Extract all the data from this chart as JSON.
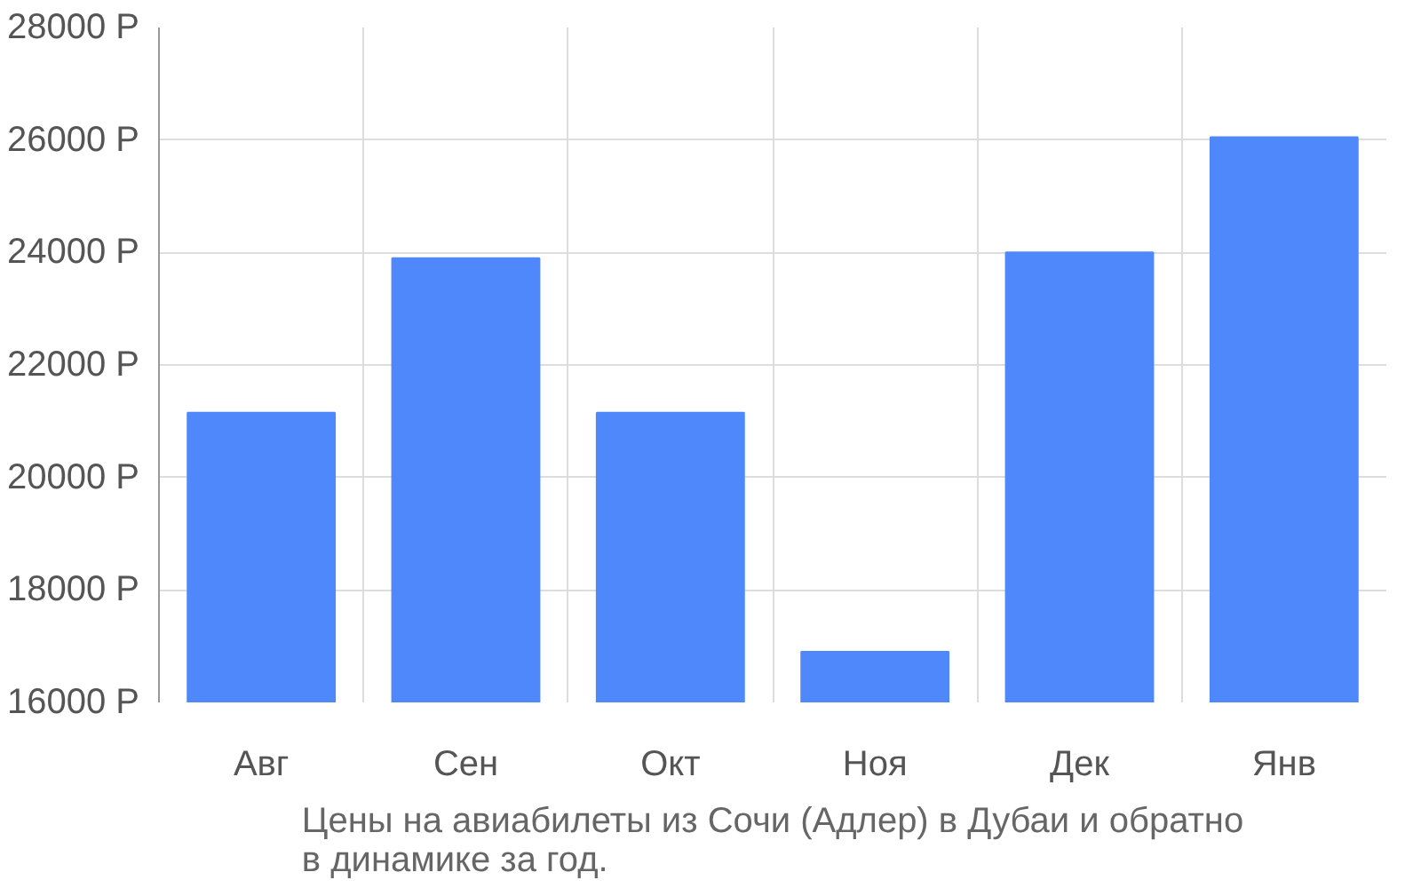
{
  "chart_data": {
    "type": "bar",
    "categories": [
      "Авг",
      "Сен",
      "Окт",
      "Ноя",
      "Дек",
      "Янв"
    ],
    "values": [
      21150,
      23900,
      21150,
      16900,
      24000,
      26050
    ],
    "color": "#4f88fb",
    "ylim": [
      16000,
      28000
    ],
    "yticks": [
      {
        "value": 16000,
        "label": "16000 Р"
      },
      {
        "value": 18000,
        "label": "18000 Р"
      },
      {
        "value": 20000,
        "label": "20000 Р"
      },
      {
        "value": 22000,
        "label": "22000 Р"
      },
      {
        "value": 24000,
        "label": "24000 Р"
      },
      {
        "value": 26000,
        "label": "26000 Р"
      },
      {
        "value": 28000,
        "label": "28000 Р"
      }
    ],
    "grid": true,
    "annotations": [
      "Цены на авиабилеты из Сочи (Адлер) в Дубаи и обратно\nв динамике за год."
    ]
  }
}
